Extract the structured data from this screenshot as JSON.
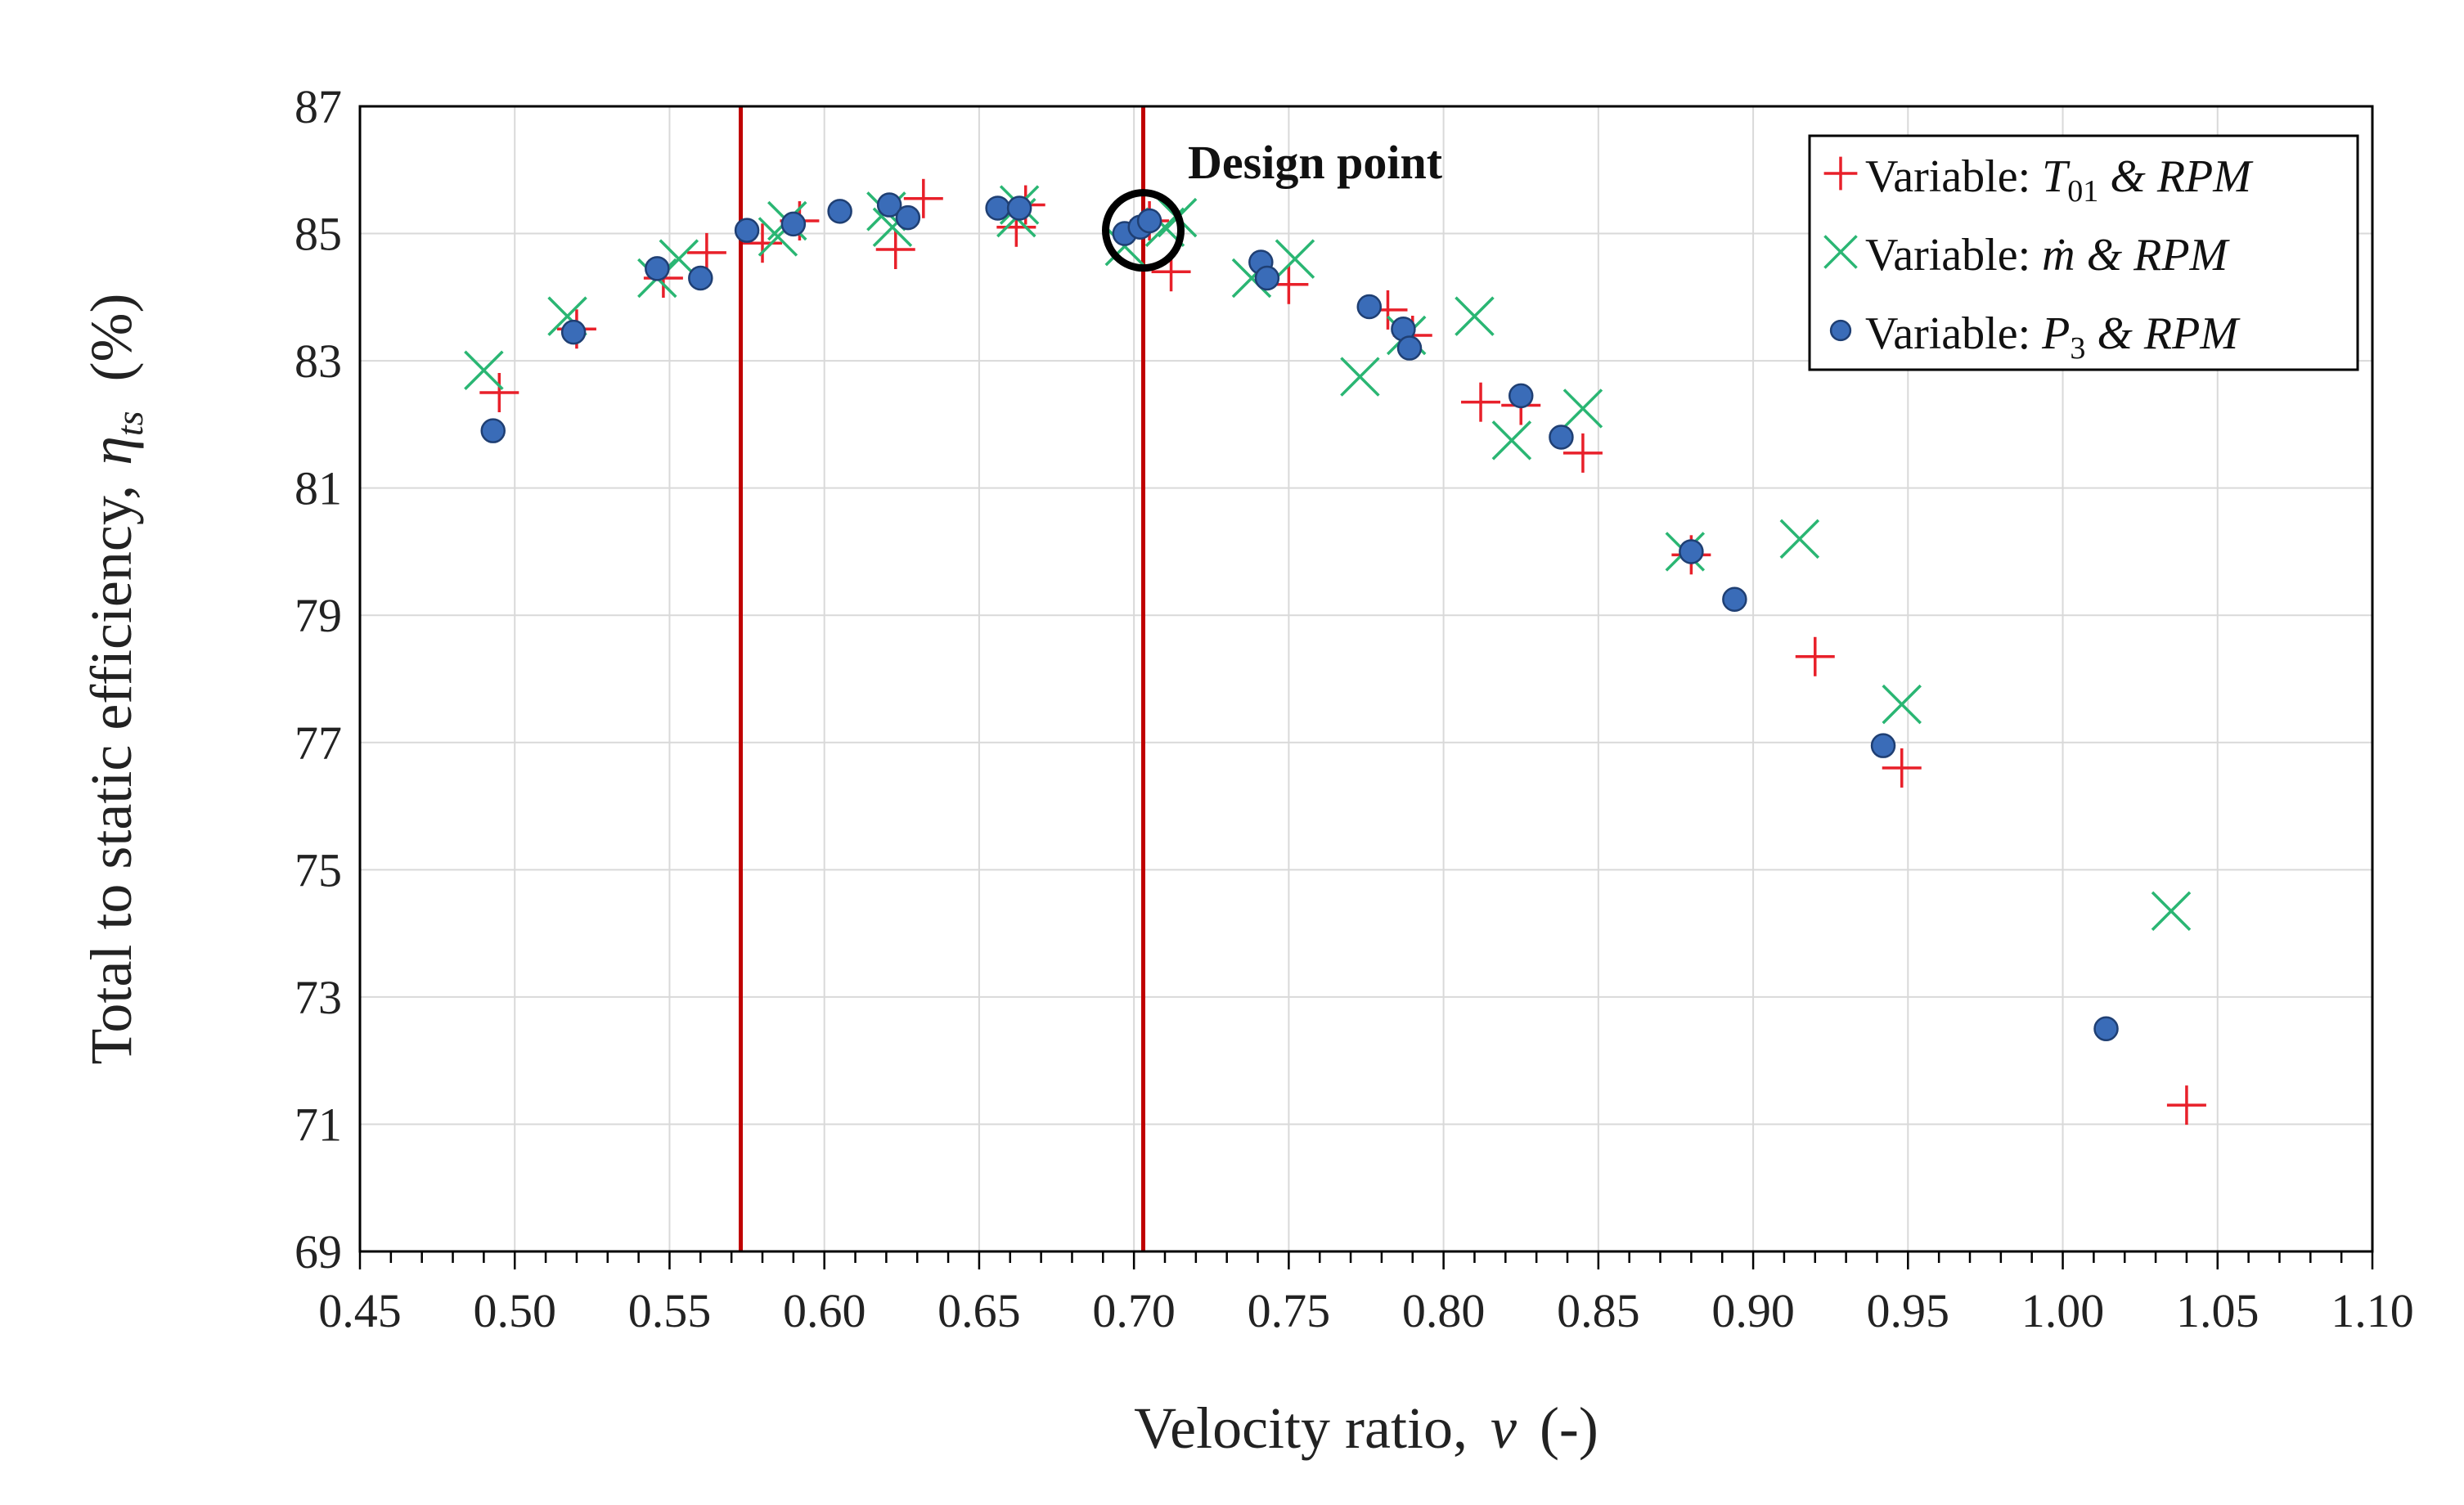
{
  "chart_data": {
    "type": "scatter",
    "title": "",
    "xlabel": "Velocity ratio,",
    "xlabel_symbol": "ν",
    "xlabel_unit": "(-)",
    "ylabel": "Total to static efficiency,",
    "ylabel_symbol": "η",
    "ylabel_subscript": "ts",
    "ylabel_unit": "(%)",
    "xlim": [
      0.45,
      1.1
    ],
    "ylim": [
      69,
      87
    ],
    "xticks": [
      "0.45",
      "0.50",
      "0.55",
      "0.60",
      "0.65",
      "0.70",
      "0.75",
      "0.80",
      "0.85",
      "0.90",
      "0.95",
      "1.00",
      "1.05",
      "1.10"
    ],
    "yticks": [
      "69",
      "71",
      "73",
      "75",
      "77",
      "79",
      "81",
      "83",
      "85",
      "87"
    ],
    "grid": true,
    "legend_position": "top-right",
    "vertical_lines": [
      0.573,
      0.703
    ],
    "vertical_line_color": "#c00000",
    "annotation": {
      "text": "Design point",
      "x": 0.703,
      "y": 85.05
    },
    "series": [
      {
        "name": "Variable: T01 & RPM",
        "legend_prefix": "Variable: ",
        "legend_sym": "T",
        "legend_sub": "01",
        "legend_suffix": " & RPM",
        "marker": "plus",
        "color": "#e8202a",
        "x": [
          0.495,
          0.52,
          0.548,
          0.562,
          0.58,
          0.592,
          0.623,
          0.632,
          0.662,
          0.665,
          0.705,
          0.712,
          0.75,
          0.782,
          0.79,
          0.812,
          0.825,
          0.845,
          0.88,
          0.92,
          0.948,
          1.04
        ],
        "y": [
          82.5,
          83.5,
          84.3,
          84.7,
          84.85,
          85.2,
          84.75,
          85.55,
          85.1,
          85.45,
          85.2,
          84.4,
          84.2,
          83.8,
          83.4,
          82.35,
          82.3,
          81.55,
          79.95,
          78.35,
          76.6,
          71.3
        ]
      },
      {
        "name": "Variable: ṁ & RPM",
        "legend_prefix": "Variable: ",
        "legend_sym": "ṁ",
        "legend_sub": "",
        "legend_suffix": " & RPM",
        "marker": "x",
        "color": "#2ab673",
        "x": [
          0.49,
          0.517,
          0.546,
          0.553,
          0.585,
          0.588,
          0.62,
          0.622,
          0.662,
          0.663,
          0.697,
          0.71,
          0.714,
          0.738,
          0.752,
          0.773,
          0.788,
          0.81,
          0.822,
          0.845,
          0.878,
          0.915,
          0.948,
          1.035
        ],
        "y": [
          82.85,
          83.7,
          84.3,
          84.6,
          84.95,
          85.2,
          85.35,
          85.1,
          85.25,
          85.45,
          84.8,
          85.1,
          85.25,
          84.3,
          84.6,
          82.75,
          83.4,
          83.7,
          81.75,
          82.25,
          80.0,
          80.2,
          77.6,
          74.35
        ]
      },
      {
        "name": "Variable: P3 & RPM",
        "legend_prefix": "Variable: ",
        "legend_sym": "P",
        "legend_sub": "3",
        "legend_suffix": " & RPM",
        "marker": "circle",
        "color": "#3a6cb8",
        "x": [
          0.493,
          0.519,
          0.546,
          0.56,
          0.575,
          0.59,
          0.605,
          0.621,
          0.627,
          0.656,
          0.663,
          0.697,
          0.702,
          0.705,
          0.741,
          0.743,
          0.776,
          0.787,
          0.789,
          0.825,
          0.838,
          0.88,
          0.894,
          0.942,
          1.014
        ],
        "y": [
          81.9,
          83.45,
          84.45,
          84.3,
          85.05,
          85.15,
          85.35,
          85.45,
          85.25,
          85.4,
          85.4,
          85.0,
          85.1,
          85.2,
          84.55,
          84.3,
          83.85,
          83.5,
          83.2,
          82.45,
          81.8,
          80.0,
          79.25,
          76.95,
          72.5
        ]
      }
    ]
  }
}
